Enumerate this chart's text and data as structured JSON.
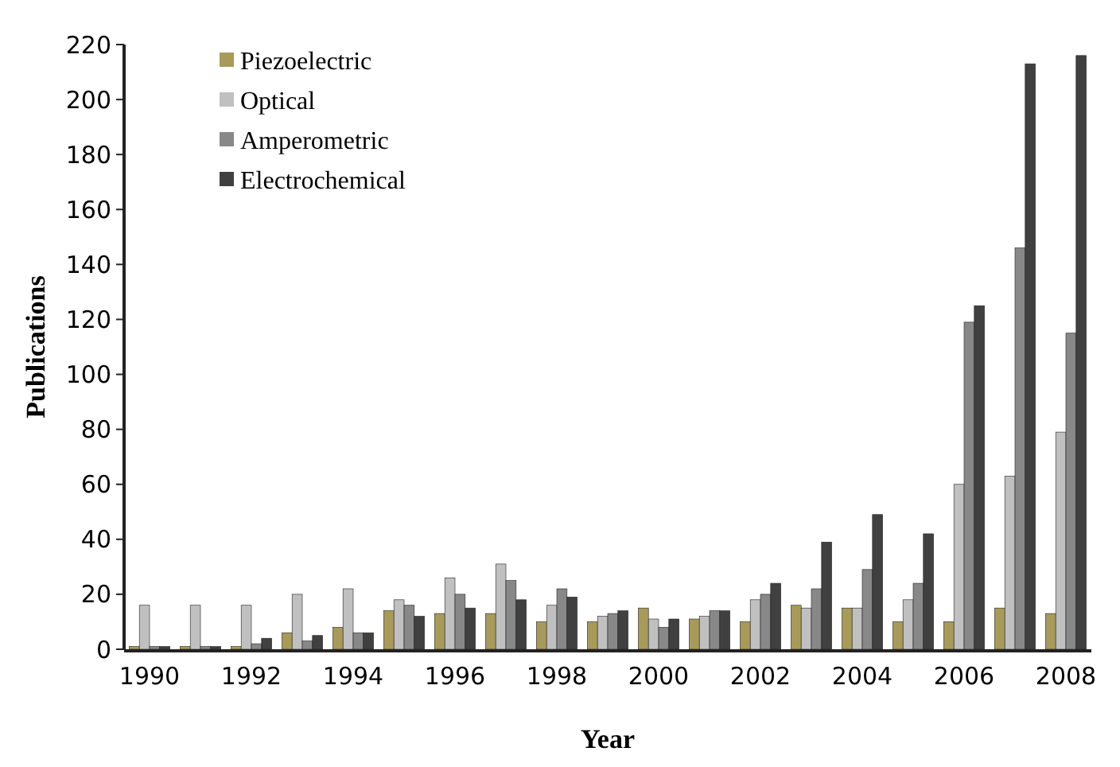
{
  "chart_data": {
    "type": "bar",
    "xlabel": "Year",
    "ylabel": "Publications",
    "categories": [
      "1990",
      null,
      "1992",
      null,
      "1994",
      null,
      "1996",
      null,
      "1998",
      null,
      "2000",
      null,
      "2002",
      null,
      "2004",
      null,
      "2006",
      null,
      "2008"
    ],
    "series": [
      {
        "name": "Piezoelectric",
        "color": "#a89a5a",
        "values": [
          1,
          1,
          1,
          6,
          8,
          14,
          13,
          13,
          10,
          10,
          15,
          11,
          10,
          16,
          15,
          10,
          10,
          15,
          13
        ]
      },
      {
        "name": "Optical",
        "color": "#c0c0c0",
        "values": [
          16,
          16,
          16,
          20,
          22,
          18,
          26,
          31,
          16,
          12,
          11,
          12,
          18,
          15,
          15,
          18,
          60,
          63,
          79
        ]
      },
      {
        "name": "Amperometric",
        "color": "#888888",
        "values": [
          1,
          1,
          2,
          3,
          6,
          16,
          20,
          25,
          22,
          13,
          8,
          14,
          20,
          22,
          29,
          24,
          119,
          146,
          115
        ]
      },
      {
        "name": "Electrochemical",
        "color": "#404040",
        "values": [
          1,
          1,
          4,
          5,
          6,
          12,
          15,
          18,
          19,
          14,
          11,
          14,
          24,
          39,
          49,
          42,
          125,
          213,
          216
        ]
      }
    ],
    "ylim": [
      0,
      220
    ],
    "yticks": [
      0,
      20,
      40,
      60,
      80,
      100,
      120,
      140,
      160,
      180,
      200,
      220
    ],
    "legend": "top left",
    "grid": false
  }
}
